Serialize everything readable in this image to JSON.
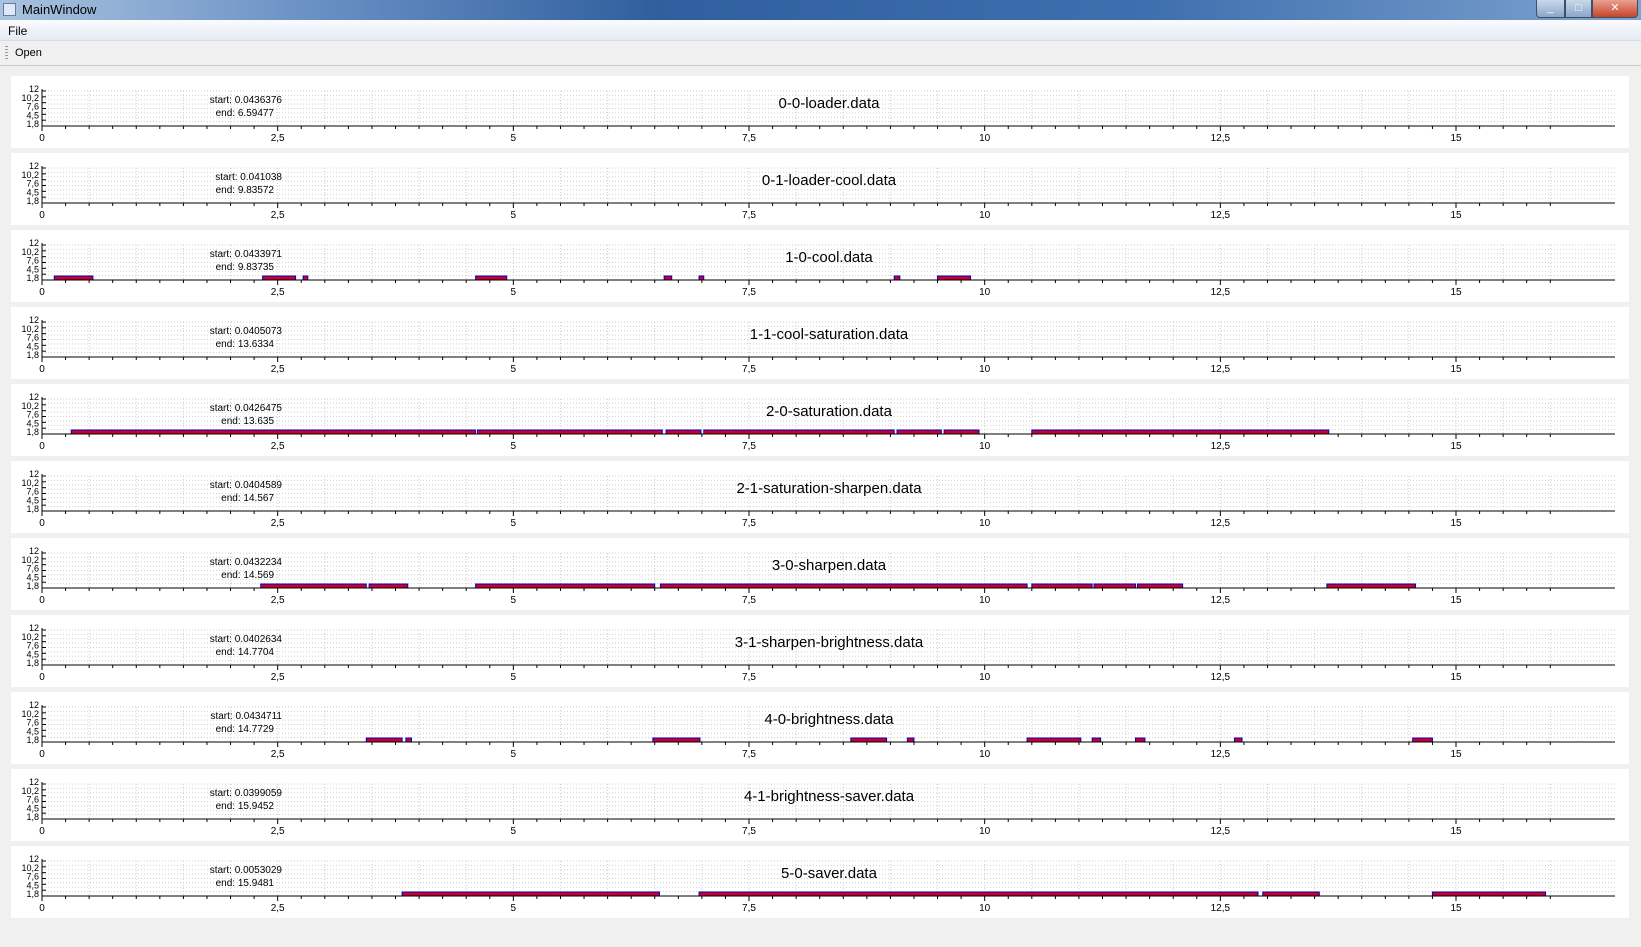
{
  "window": {
    "title": "MainWindow",
    "minimize_glyph": "_",
    "maximize_glyph": "□",
    "close_glyph": "✕"
  },
  "menu": {
    "file_label": "File"
  },
  "toolbar": {
    "open_label": "Open"
  },
  "axes": {
    "x_ticks": [
      0,
      2.5,
      5,
      7.5,
      10,
      12.5,
      15
    ],
    "x_tick_labels": [
      "0",
      "2,5",
      "5",
      "7,5",
      "10",
      "12,5",
      "15"
    ],
    "x_range": [
      0,
      16
    ],
    "y_tick_labels": [
      "1,8",
      "4,5",
      "7,6",
      "10,2",
      "12"
    ]
  },
  "colors": {
    "segment_fill": "#c8002c",
    "segment_border": "#0000cc",
    "axis": "#000000",
    "grid": "#cfcfcf"
  },
  "chart_data": [
    {
      "type": "bar",
      "title": "0-0-loader.data",
      "start_label": "start: 0.0436376",
      "end_label": "end: 6.59477",
      "segments": []
    },
    {
      "type": "bar",
      "title": "0-1-loader-cool.data",
      "start_label": "start: 0.041038",
      "end_label": "end: 9.83572",
      "segments": []
    },
    {
      "type": "bar",
      "title": "1-0-cool.data",
      "start_label": "start: 0.0433971",
      "end_label": "end: 9.83735",
      "segments": [
        [
          0.13,
          0.54
        ],
        [
          2.34,
          2.69
        ],
        [
          2.77,
          2.82
        ],
        [
          4.6,
          4.93
        ],
        [
          6.6,
          6.68
        ],
        [
          6.97,
          7.02
        ],
        [
          9.04,
          9.1
        ],
        [
          9.5,
          9.85
        ]
      ]
    },
    {
      "type": "bar",
      "title": "1-1-cool-saturation.data",
      "start_label": "start: 0.0405073",
      "end_label": "end: 13.6334",
      "segments": []
    },
    {
      "type": "bar",
      "title": "2-0-saturation.data",
      "start_label": "start: 0.0426475",
      "end_label": "end: 13.635",
      "segments": [
        [
          0.31,
          4.6
        ],
        [
          4.62,
          6.58
        ],
        [
          6.62,
          6.99
        ],
        [
          7.02,
          9.04
        ],
        [
          9.07,
          9.54
        ],
        [
          9.57,
          9.94
        ],
        [
          10.5,
          13.65
        ]
      ]
    },
    {
      "type": "bar",
      "title": "2-1-saturation-sharpen.data",
      "start_label": "start: 0.0404589",
      "end_label": "end: 14.567",
      "segments": []
    },
    {
      "type": "bar",
      "title": "3-0-sharpen.data",
      "start_label": "start: 0.0432234",
      "end_label": "end: 14.569",
      "segments": [
        [
          2.32,
          3.44
        ],
        [
          3.47,
          3.88
        ],
        [
          4.6,
          6.5
        ],
        [
          6.56,
          10.45
        ],
        [
          10.5,
          11.14
        ],
        [
          11.16,
          11.6
        ],
        [
          11.62,
          12.1
        ],
        [
          13.63,
          14.57
        ]
      ]
    },
    {
      "type": "bar",
      "title": "3-1-sharpen-brightness.data",
      "start_label": "start: 0.0402634",
      "end_label": "end: 14.7704",
      "segments": []
    },
    {
      "type": "bar",
      "title": "4-0-brightness.data",
      "start_label": "start: 0.0434711",
      "end_label": "end: 14.7729",
      "segments": [
        [
          3.44,
          3.82
        ],
        [
          3.86,
          3.92
        ],
        [
          6.48,
          6.98
        ],
        [
          8.58,
          8.96
        ],
        [
          9.18,
          9.25
        ],
        [
          10.45,
          11.02
        ],
        [
          11.14,
          11.23
        ],
        [
          11.6,
          11.7
        ],
        [
          12.65,
          12.73
        ],
        [
          14.54,
          14.75
        ]
      ]
    },
    {
      "type": "bar",
      "title": "4-1-brightness-saver.data",
      "start_label": "start: 0.0399059",
      "end_label": "end: 15.9452",
      "segments": []
    },
    {
      "type": "bar",
      "title": "5-0-saver.data",
      "start_label": "start: 0.0053029",
      "end_label": "end: 15.9481",
      "segments": [
        [
          3.82,
          6.55
        ],
        [
          6.97,
          12.9
        ],
        [
          12.95,
          13.55
        ],
        [
          14.75,
          15.95
        ]
      ]
    }
  ]
}
